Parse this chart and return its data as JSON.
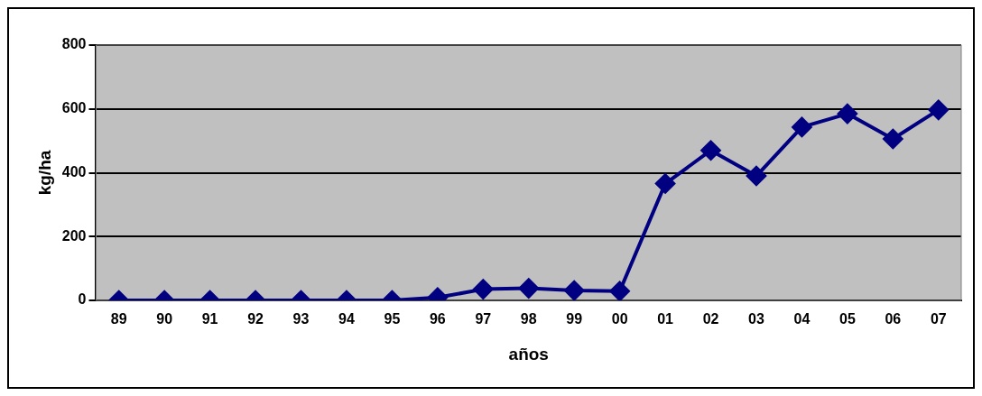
{
  "chart_data": {
    "type": "line",
    "xlabel": "años",
    "ylabel": "kg/ha",
    "categories": [
      "89",
      "90",
      "91",
      "92",
      "93",
      "94",
      "95",
      "96",
      "97",
      "98",
      "99",
      "00",
      "01",
      "02",
      "03",
      "04",
      "05",
      "06",
      "07"
    ],
    "series": [
      {
        "color": "#000080",
        "values": [
          0,
          0,
          0,
          0,
          0,
          0,
          0,
          9,
          35,
          38,
          31,
          29,
          366,
          470,
          390,
          543,
          585,
          506,
          597
        ]
      }
    ],
    "ylim": [
      0,
      800
    ],
    "yticks": [
      0,
      200,
      400,
      600,
      800
    ],
    "grid": "y",
    "legend": false,
    "marker": "diamond",
    "line_style": "solid"
  }
}
